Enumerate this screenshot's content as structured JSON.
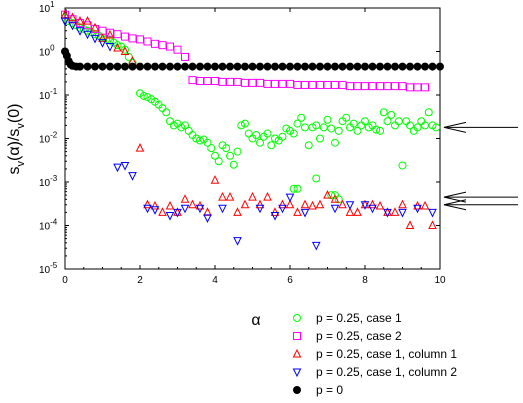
{
  "chart_data": {
    "type": "scatter",
    "ylabel": "s_v(α)/s_v(0)",
    "xlabel": "α",
    "xlim": [
      0,
      10
    ],
    "ylim": [
      1e-05,
      10
    ],
    "yscale": "log",
    "x_ticks": [
      0,
      2,
      4,
      6,
      8,
      10
    ],
    "y_ticks": [
      {
        "value": 1e-05,
        "label": "10",
        "exp": "-5"
      },
      {
        "value": 0.0001,
        "label": "10",
        "exp": "-4"
      },
      {
        "value": 0.001,
        "label": "10",
        "exp": "-3"
      },
      {
        "value": 0.01,
        "label": "10",
        "exp": "-2"
      },
      {
        "value": 0.1,
        "label": "10",
        "exp": "-1"
      },
      {
        "value": 1,
        "label": "10",
        "exp": "0"
      },
      {
        "value": 10,
        "label": "10",
        "exp": "1"
      }
    ],
    "grid": false,
    "legend_position": "bottom",
    "arrows_y": [
      0.018,
      0.00045,
      0.0003
    ],
    "series": [
      {
        "name": "p = 0.25, case 1",
        "marker": "circle-open",
        "color": "#00ff00",
        "points": [
          [
            0.0,
            6.0
          ],
          [
            0.1,
            5.0
          ],
          [
            0.2,
            4.5
          ],
          [
            0.3,
            4.0
          ],
          [
            0.4,
            3.5
          ],
          [
            0.5,
            3.3
          ],
          [
            0.6,
            3.0
          ],
          [
            0.7,
            2.8
          ],
          [
            0.8,
            2.5
          ],
          [
            0.9,
            2.3
          ],
          [
            1.0,
            2.1
          ],
          [
            1.1,
            1.9
          ],
          [
            1.2,
            1.8
          ],
          [
            1.3,
            1.6
          ],
          [
            1.4,
            1.4
          ],
          [
            1.5,
            1.3
          ],
          [
            1.6,
            1.1
          ],
          [
            1.7,
            0.75
          ],
          [
            1.8,
            0.55
          ],
          [
            2.0,
            0.11
          ],
          [
            2.1,
            0.095
          ],
          [
            2.2,
            0.09
          ],
          [
            2.3,
            0.08
          ],
          [
            2.4,
            0.07
          ],
          [
            2.5,
            0.06
          ],
          [
            2.6,
            0.05
          ],
          [
            2.7,
            0.04
          ],
          [
            2.8,
            0.025
          ],
          [
            2.9,
            0.02
          ],
          [
            3.0,
            0.022
          ],
          [
            3.1,
            0.018
          ],
          [
            3.2,
            0.02
          ],
          [
            3.3,
            0.015
          ],
          [
            3.4,
            0.012
          ],
          [
            3.5,
            0.01
          ],
          [
            3.6,
            0.009
          ],
          [
            3.7,
            0.0095
          ],
          [
            3.8,
            0.008
          ],
          [
            3.9,
            0.006
          ],
          [
            4.0,
            0.004
          ],
          [
            4.1,
            0.003
          ],
          [
            4.2,
            0.007
          ],
          [
            4.3,
            0.006
          ],
          [
            4.4,
            0.004
          ],
          [
            4.5,
            0.0025
          ],
          [
            4.6,
            0.005
          ],
          [
            4.7,
            0.02
          ],
          [
            4.8,
            0.022
          ],
          [
            4.9,
            0.013
          ],
          [
            5.0,
            0.01
          ],
          [
            5.1,
            0.012
          ],
          [
            5.2,
            0.008
          ],
          [
            5.3,
            0.011
          ],
          [
            5.4,
            0.013
          ],
          [
            5.5,
            0.007
          ],
          [
            5.6,
            0.01
          ],
          [
            5.7,
            0.009
          ],
          [
            5.8,
            0.011
          ],
          [
            5.9,
            0.017
          ],
          [
            6.0,
            0.015
          ],
          [
            6.1,
            0.013
          ],
          [
            6.2,
            0.022
          ],
          [
            6.3,
            0.03
          ],
          [
            6.4,
            0.018
          ],
          [
            6.5,
            0.007
          ],
          [
            6.6,
            0.018
          ],
          [
            6.7,
            0.02
          ],
          [
            6.8,
            0.01
          ],
          [
            6.9,
            0.018
          ],
          [
            7.0,
            0.027
          ],
          [
            7.1,
            0.017
          ],
          [
            7.2,
            0.008
          ],
          [
            7.3,
            0.015
          ],
          [
            7.4,
            0.025
          ],
          [
            7.5,
            0.03
          ],
          [
            7.6,
            0.018
          ],
          [
            7.7,
            0.022
          ],
          [
            7.8,
            0.015
          ],
          [
            7.9,
            0.02
          ],
          [
            8.0,
            0.025
          ],
          [
            8.1,
            0.018
          ],
          [
            8.2,
            0.02
          ],
          [
            8.3,
            0.016
          ],
          [
            8.4,
            0.015
          ],
          [
            8.5,
            0.04
          ],
          [
            8.6,
            0.025
          ],
          [
            8.7,
            0.035
          ],
          [
            8.8,
            0.02
          ],
          [
            8.9,
            0.025
          ],
          [
            9.0,
            0.0024
          ],
          [
            9.1,
            0.025
          ],
          [
            9.2,
            0.02
          ],
          [
            9.3,
            0.015
          ],
          [
            9.4,
            0.018
          ],
          [
            9.5,
            0.025
          ],
          [
            9.6,
            0.02
          ],
          [
            9.7,
            0.04
          ],
          [
            9.8,
            0.02
          ],
          [
            9.9,
            0.018
          ],
          [
            6.7,
            0.0012
          ],
          [
            6.2,
            0.0007
          ],
          [
            6.1,
            0.0007
          ],
          [
            7.1,
            0.0005
          ],
          [
            7.2,
            0.0005
          ],
          [
            7.3,
            0.0004
          ]
        ]
      },
      {
        "name": "p = 0.25, case 2",
        "marker": "square-open",
        "color": "#ff00ff",
        "points": [
          [
            0.0,
            7.0
          ],
          [
            0.2,
            5.5
          ],
          [
            0.4,
            4.5
          ],
          [
            0.6,
            4.0
          ],
          [
            0.8,
            3.3
          ],
          [
            1.0,
            3.0
          ],
          [
            1.2,
            2.7
          ],
          [
            1.4,
            2.5
          ],
          [
            1.6,
            2.2
          ],
          [
            1.8,
            2.0
          ],
          [
            2.0,
            1.9
          ],
          [
            2.2,
            1.7
          ],
          [
            2.4,
            1.5
          ],
          [
            2.6,
            1.4
          ],
          [
            2.8,
            1.3
          ],
          [
            3.0,
            1.1
          ],
          [
            3.2,
            0.75
          ],
          [
            3.4,
            0.22
          ],
          [
            3.6,
            0.21
          ],
          [
            3.8,
            0.21
          ],
          [
            4.0,
            0.21
          ],
          [
            4.2,
            0.2
          ],
          [
            4.4,
            0.2
          ],
          [
            4.6,
            0.2
          ],
          [
            4.8,
            0.19
          ],
          [
            5.0,
            0.19
          ],
          [
            5.2,
            0.19
          ],
          [
            5.4,
            0.18
          ],
          [
            5.6,
            0.18
          ],
          [
            5.8,
            0.18
          ],
          [
            6.0,
            0.18
          ],
          [
            6.2,
            0.17
          ],
          [
            6.4,
            0.17
          ],
          [
            6.6,
            0.17
          ],
          [
            6.8,
            0.17
          ],
          [
            7.0,
            0.17
          ],
          [
            7.2,
            0.17
          ],
          [
            7.4,
            0.17
          ],
          [
            7.6,
            0.16
          ],
          [
            7.8,
            0.16
          ],
          [
            8.0,
            0.16
          ],
          [
            8.2,
            0.16
          ],
          [
            8.4,
            0.16
          ],
          [
            8.6,
            0.16
          ],
          [
            8.8,
            0.16
          ],
          [
            9.0,
            0.16
          ],
          [
            9.2,
            0.15
          ],
          [
            9.4,
            0.15
          ],
          [
            9.6,
            0.15
          ]
        ]
      },
      {
        "name": "p = 0.25, case 1, column 1",
        "marker": "triangle-up-open",
        "color": "#ff0000",
        "points": [
          [
            0.0,
            7.0
          ],
          [
            0.2,
            6.0
          ],
          [
            0.4,
            5.0
          ],
          [
            0.6,
            5.0
          ],
          [
            0.8,
            3.5
          ],
          [
            1.0,
            2.0
          ],
          [
            1.2,
            2.4
          ],
          [
            1.4,
            1.2
          ],
          [
            1.6,
            1.0
          ],
          [
            1.8,
            0.6
          ],
          [
            2.0,
            0.006
          ],
          [
            2.2,
            0.0003
          ],
          [
            2.4,
            0.00028
          ],
          [
            2.6,
            0.0002
          ],
          [
            2.8,
            0.00028
          ],
          [
            3.0,
            0.0002
          ],
          [
            3.2,
            0.0004
          ],
          [
            3.4,
            0.0003
          ],
          [
            3.6,
            0.00028
          ],
          [
            3.8,
            0.0002
          ],
          [
            4.0,
            0.0011
          ],
          [
            4.2,
            0.00045
          ],
          [
            4.4,
            0.00045
          ],
          [
            4.6,
            0.0002
          ],
          [
            4.8,
            0.0003
          ],
          [
            5.0,
            0.00045
          ],
          [
            5.2,
            0.0003
          ],
          [
            5.4,
            0.00045
          ],
          [
            5.6,
            0.0002
          ],
          [
            5.8,
            0.0003
          ],
          [
            6.0,
            0.0003
          ],
          [
            6.2,
            0.0002
          ],
          [
            6.4,
            0.0003
          ],
          [
            6.6,
            0.00028
          ],
          [
            6.8,
            0.0003
          ],
          [
            7.0,
            0.0005
          ],
          [
            7.2,
            0.0004
          ],
          [
            7.4,
            0.0003
          ],
          [
            7.6,
            0.0002
          ],
          [
            7.8,
            0.0002
          ],
          [
            8.0,
            0.0003
          ],
          [
            8.2,
            0.0003
          ],
          [
            8.4,
            0.00028
          ],
          [
            8.6,
            0.0002
          ],
          [
            8.8,
            0.0002
          ],
          [
            9.0,
            0.0003
          ],
          [
            9.2,
            0.0001
          ],
          [
            9.4,
            0.00028
          ],
          [
            9.6,
            0.00028
          ],
          [
            9.8,
            0.0001
          ]
        ]
      },
      {
        "name": "p = 0.25, case 1, column 2",
        "marker": "triangle-down-open",
        "color": "#0000ff",
        "points": [
          [
            0.0,
            5.0
          ],
          [
            0.2,
            4.0
          ],
          [
            0.4,
            3.0
          ],
          [
            0.6,
            2.5
          ],
          [
            0.8,
            2.0
          ],
          [
            1.0,
            1.6
          ],
          [
            1.2,
            1.3
          ],
          [
            1.4,
            0.0022
          ],
          [
            1.6,
            0.0024
          ],
          [
            1.8,
            0.0014
          ],
          [
            2.2,
            0.00025
          ],
          [
            2.4,
            0.00023
          ],
          [
            2.8,
            0.00017
          ],
          [
            3.0,
            0.0002
          ],
          [
            3.2,
            0.00025
          ],
          [
            3.6,
            0.00025
          ],
          [
            3.8,
            0.00015
          ],
          [
            4.2,
            0.00025
          ],
          [
            4.6,
            4.5e-05
          ],
          [
            5.2,
            0.00025
          ],
          [
            5.6,
            0.00017
          ],
          [
            5.8,
            0.00025
          ],
          [
            6.0,
            0.00045
          ],
          [
            6.4,
            0.0002
          ],
          [
            6.7,
            3.5e-05
          ],
          [
            7.2,
            0.00025
          ],
          [
            7.6,
            0.0003
          ],
          [
            8.0,
            0.0003
          ],
          [
            8.2,
            0.00025
          ],
          [
            8.6,
            0.0002
          ],
          [
            9.0,
            0.0002
          ],
          [
            9.4,
            0.00025
          ],
          [
            9.8,
            0.0002
          ]
        ]
      },
      {
        "name": "p = 0",
        "marker": "circle-filled",
        "color": "#000000",
        "points": [
          [
            0.0,
            1.0
          ],
          [
            0.05,
            0.8
          ],
          [
            0.1,
            0.6
          ],
          [
            0.15,
            0.5
          ],
          [
            0.2,
            0.47
          ],
          [
            0.3,
            0.45
          ],
          [
            0.4,
            0.45
          ],
          [
            0.6,
            0.45
          ],
          [
            0.8,
            0.45
          ],
          [
            1.0,
            0.45
          ],
          [
            1.2,
            0.45
          ],
          [
            1.4,
            0.45
          ],
          [
            1.6,
            0.45
          ],
          [
            1.8,
            0.45
          ],
          [
            2.0,
            0.45
          ],
          [
            2.2,
            0.45
          ],
          [
            2.4,
            0.45
          ],
          [
            2.6,
            0.45
          ],
          [
            2.8,
            0.45
          ],
          [
            3.0,
            0.45
          ],
          [
            3.2,
            0.45
          ],
          [
            3.4,
            0.45
          ],
          [
            3.6,
            0.45
          ],
          [
            3.8,
            0.45
          ],
          [
            4.0,
            0.45
          ],
          [
            4.2,
            0.45
          ],
          [
            4.4,
            0.45
          ],
          [
            4.6,
            0.45
          ],
          [
            4.8,
            0.45
          ],
          [
            5.0,
            0.45
          ],
          [
            5.2,
            0.45
          ],
          [
            5.4,
            0.45
          ],
          [
            5.6,
            0.45
          ],
          [
            5.8,
            0.45
          ],
          [
            6.0,
            0.45
          ],
          [
            6.2,
            0.45
          ],
          [
            6.4,
            0.45
          ],
          [
            6.6,
            0.45
          ],
          [
            6.8,
            0.45
          ],
          [
            7.0,
            0.45
          ],
          [
            7.2,
            0.45
          ],
          [
            7.4,
            0.45
          ],
          [
            7.6,
            0.45
          ],
          [
            7.8,
            0.45
          ],
          [
            8.0,
            0.45
          ],
          [
            8.2,
            0.45
          ],
          [
            8.4,
            0.45
          ],
          [
            8.6,
            0.45
          ],
          [
            8.8,
            0.45
          ],
          [
            9.0,
            0.45
          ],
          [
            9.2,
            0.45
          ],
          [
            9.4,
            0.45
          ],
          [
            9.6,
            0.45
          ],
          [
            9.8,
            0.45
          ],
          [
            10.0,
            0.45
          ]
        ]
      }
    ]
  }
}
